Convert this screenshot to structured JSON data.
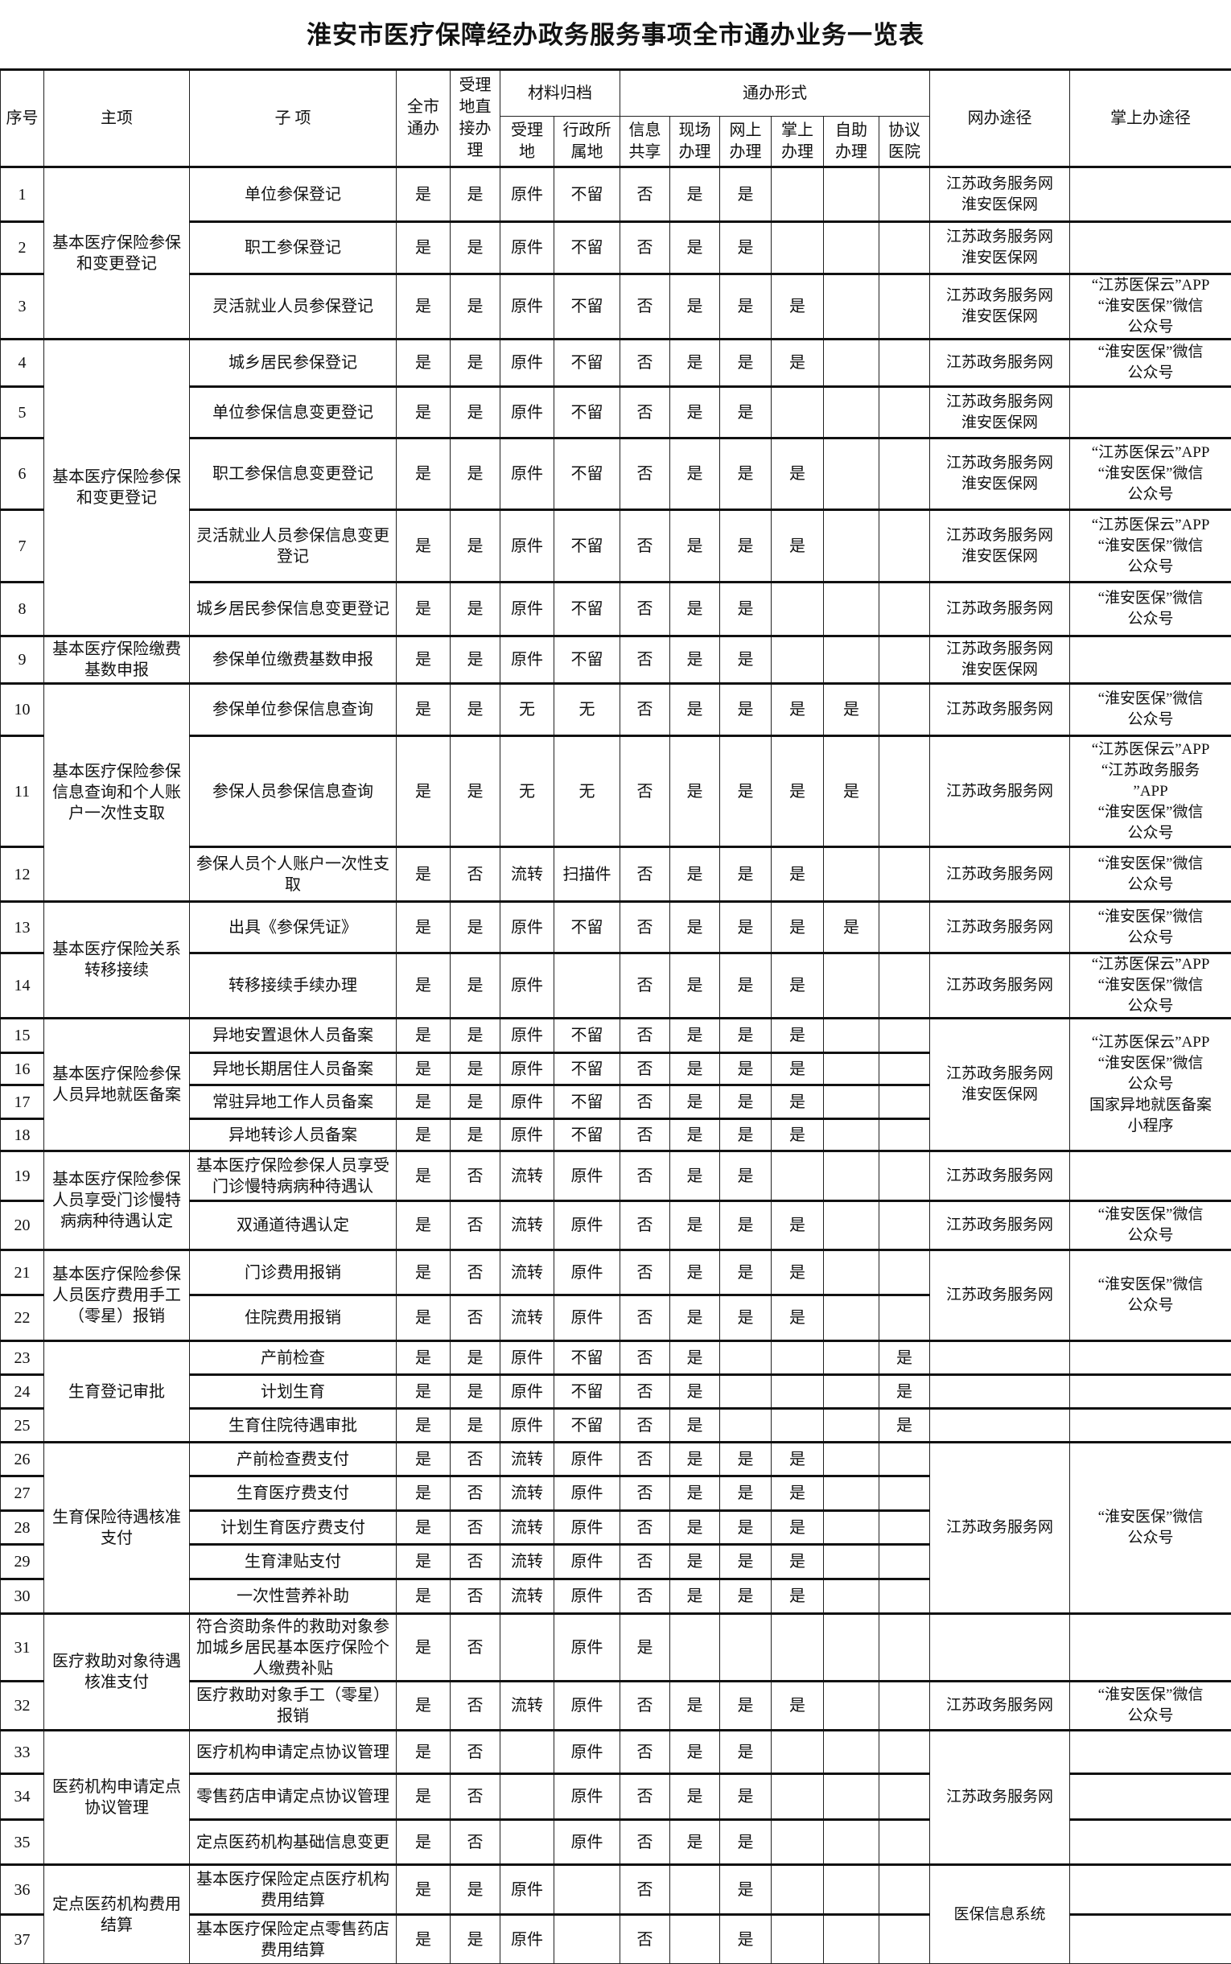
{
  "title": "淮安市医疗保障经办政务服务事项全市通办业务一览表",
  "headers": {
    "no": "序号",
    "main": "主项",
    "sub": "子 项",
    "citywide": "全市\n通办",
    "direct": "受理\n地直\n接办\n理",
    "archive": "材料归档",
    "archive_accept": "受理\n地",
    "archive_admin": "行政所\n属地",
    "mode": "通办形式",
    "mode_share": "信息\n共享",
    "mode_onsite": "现场\n办理",
    "mode_online": "网上\n办理",
    "mode_mobile": "掌上\n办理",
    "mode_self": "自助\n办理",
    "mode_hospital": "协议\n医院",
    "web": "网办途径",
    "mobile": "掌上办途径"
  },
  "rows": [
    {
      "no": "1",
      "sub": "单位参保登记",
      "c": [
        "是",
        "是",
        "原件",
        "不留",
        "否",
        "是",
        "是",
        "",
        "",
        ""
      ]
    },
    {
      "no": "2",
      "sub": "职工参保登记",
      "c": [
        "是",
        "是",
        "原件",
        "不留",
        "否",
        "是",
        "是",
        "",
        "",
        ""
      ]
    },
    {
      "no": "3",
      "sub": "灵活就业人员参保登记",
      "c": [
        "是",
        "是",
        "原件",
        "不留",
        "否",
        "是",
        "是",
        "是",
        "",
        ""
      ]
    },
    {
      "no": "4",
      "sub": "城乡居民参保登记",
      "c": [
        "是",
        "是",
        "原件",
        "不留",
        "否",
        "是",
        "是",
        "是",
        "",
        ""
      ]
    },
    {
      "no": "5",
      "sub": "单位参保信息变更登记",
      "c": [
        "是",
        "是",
        "原件",
        "不留",
        "否",
        "是",
        "是",
        "",
        "",
        ""
      ]
    },
    {
      "no": "6",
      "sub": "职工参保信息变更登记",
      "c": [
        "是",
        "是",
        "原件",
        "不留",
        "否",
        "是",
        "是",
        "是",
        "",
        ""
      ]
    },
    {
      "no": "7",
      "sub": "灵活就业人员参保信息变更登记",
      "c": [
        "是",
        "是",
        "原件",
        "不留",
        "否",
        "是",
        "是",
        "是",
        "",
        ""
      ]
    },
    {
      "no": "8",
      "sub": "城乡居民参保信息变更登记",
      "c": [
        "是",
        "是",
        "原件",
        "不留",
        "否",
        "是",
        "是",
        "",
        "",
        ""
      ]
    },
    {
      "no": "9",
      "sub": "参保单位缴费基数申报",
      "c": [
        "是",
        "是",
        "原件",
        "不留",
        "否",
        "是",
        "是",
        "",
        "",
        ""
      ]
    },
    {
      "no": "10",
      "sub": "参保单位参保信息查询",
      "c": [
        "是",
        "是",
        "无",
        "无",
        "否",
        "是",
        "是",
        "是",
        "是",
        ""
      ]
    },
    {
      "no": "11",
      "sub": "参保人员参保信息查询",
      "c": [
        "是",
        "是",
        "无",
        "无",
        "否",
        "是",
        "是",
        "是",
        "是",
        ""
      ]
    },
    {
      "no": "12",
      "sub": "参保人员个人账户一次性支取",
      "c": [
        "是",
        "否",
        "流转",
        "扫描件",
        "否",
        "是",
        "是",
        "是",
        "",
        ""
      ]
    },
    {
      "no": "13",
      "sub": "出具《参保凭证》",
      "c": [
        "是",
        "是",
        "原件",
        "不留",
        "否",
        "是",
        "是",
        "是",
        "是",
        ""
      ]
    },
    {
      "no": "14",
      "sub": "转移接续手续办理",
      "c": [
        "是",
        "是",
        "原件",
        "",
        "否",
        "是",
        "是",
        "是",
        "",
        ""
      ]
    },
    {
      "no": "15",
      "sub": "异地安置退休人员备案",
      "c": [
        "是",
        "是",
        "原件",
        "不留",
        "否",
        "是",
        "是",
        "是",
        "",
        ""
      ]
    },
    {
      "no": "16",
      "sub": "异地长期居住人员备案",
      "c": [
        "是",
        "是",
        "原件",
        "不留",
        "否",
        "是",
        "是",
        "是",
        "",
        ""
      ]
    },
    {
      "no": "17",
      "sub": "常驻异地工作人员备案",
      "c": [
        "是",
        "是",
        "原件",
        "不留",
        "否",
        "是",
        "是",
        "是",
        "",
        ""
      ]
    },
    {
      "no": "18",
      "sub": "异地转诊人员备案",
      "c": [
        "是",
        "是",
        "原件",
        "不留",
        "否",
        "是",
        "是",
        "是",
        "",
        ""
      ]
    },
    {
      "no": "19",
      "sub": "基本医疗保险参保人员享受门诊慢特病病种待遇认",
      "c": [
        "是",
        "否",
        "流转",
        "原件",
        "否",
        "是",
        "是",
        "",
        "",
        ""
      ]
    },
    {
      "no": "20",
      "sub": "双通道待遇认定",
      "c": [
        "是",
        "否",
        "流转",
        "原件",
        "否",
        "是",
        "是",
        "是",
        "",
        ""
      ]
    },
    {
      "no": "21",
      "sub": "门诊费用报销",
      "c": [
        "是",
        "否",
        "流转",
        "原件",
        "否",
        "是",
        "是",
        "是",
        "",
        ""
      ]
    },
    {
      "no": "22",
      "sub": "住院费用报销",
      "c": [
        "是",
        "否",
        "流转",
        "原件",
        "否",
        "是",
        "是",
        "是",
        "",
        ""
      ]
    },
    {
      "no": "23",
      "sub": "产前检查",
      "c": [
        "是",
        "是",
        "原件",
        "不留",
        "否",
        "是",
        "",
        "",
        "",
        "是"
      ]
    },
    {
      "no": "24",
      "sub": "计划生育",
      "c": [
        "是",
        "是",
        "原件",
        "不留",
        "否",
        "是",
        "",
        "",
        "",
        "是"
      ]
    },
    {
      "no": "25",
      "sub": "生育住院待遇审批",
      "c": [
        "是",
        "是",
        "原件",
        "不留",
        "否",
        "是",
        "",
        "",
        "",
        "是"
      ]
    },
    {
      "no": "26",
      "sub": "产前检查费支付",
      "c": [
        "是",
        "否",
        "流转",
        "原件",
        "否",
        "是",
        "是",
        "是",
        "",
        ""
      ]
    },
    {
      "no": "27",
      "sub": "生育医疗费支付",
      "c": [
        "是",
        "否",
        "流转",
        "原件",
        "否",
        "是",
        "是",
        "是",
        "",
        ""
      ]
    },
    {
      "no": "28",
      "sub": "计划生育医疗费支付",
      "c": [
        "是",
        "否",
        "流转",
        "原件",
        "否",
        "是",
        "是",
        "是",
        "",
        ""
      ]
    },
    {
      "no": "29",
      "sub": "生育津贴支付",
      "c": [
        "是",
        "否",
        "流转",
        "原件",
        "否",
        "是",
        "是",
        "是",
        "",
        ""
      ]
    },
    {
      "no": "30",
      "sub": "一次性营养补助",
      "c": [
        "是",
        "否",
        "流转",
        "原件",
        "否",
        "是",
        "是",
        "是",
        "",
        ""
      ]
    },
    {
      "no": "31",
      "sub": "符合资助条件的救助对象参加城乡居民基本医疗保险个人缴费补贴",
      "c": [
        "是",
        "否",
        "",
        "原件",
        "是",
        "",
        "",
        "",
        "",
        ""
      ]
    },
    {
      "no": "32",
      "sub": "医疗救助对象手工（零星）报销",
      "c": [
        "是",
        "否",
        "流转",
        "原件",
        "否",
        "是",
        "是",
        "是",
        "",
        ""
      ]
    },
    {
      "no": "33",
      "sub": "医疗机构申请定点协议管理",
      "c": [
        "是",
        "否",
        "",
        "原件",
        "否",
        "是",
        "是",
        "",
        "",
        ""
      ]
    },
    {
      "no": "34",
      "sub": "零售药店申请定点协议管理",
      "c": [
        "是",
        "否",
        "",
        "原件",
        "否",
        "是",
        "是",
        "",
        "",
        ""
      ]
    },
    {
      "no": "35",
      "sub": "定点医药机构基础信息变更",
      "c": [
        "是",
        "否",
        "",
        "原件",
        "否",
        "是",
        "是",
        "",
        "",
        ""
      ]
    },
    {
      "no": "36",
      "sub": "基本医疗保险定点医疗机构费用结算",
      "c": [
        "是",
        "是",
        "原件",
        "",
        "否",
        "",
        "是",
        "",
        "",
        ""
      ]
    },
    {
      "no": "37",
      "sub": "基本医疗保险定点零售药店费用结算",
      "c": [
        "是",
        "是",
        "原件",
        "",
        "否",
        "",
        "是",
        "",
        "",
        ""
      ]
    }
  ],
  "main_groups": [
    {
      "label": "基本医疗保险参保和变更登记",
      "span": 3
    },
    {
      "label": "基本医疗保险参保和变更登记",
      "span": 5
    },
    {
      "label": "基本医疗保险缴费基数申报",
      "span": 1
    },
    {
      "label": "基本医疗保险参保信息查询和个人账户一次性支取",
      "span": 3
    },
    {
      "label": "基本医疗保险关系转移接续",
      "span": 2
    },
    {
      "label": "基本医疗保险参保人员异地就医备案",
      "span": 4
    },
    {
      "label": "基本医疗保险参保人员享受门诊慢特病病种待遇认定",
      "span": 2
    },
    {
      "label": "基本医疗保险参保人员医疗费用手工（零星）报销",
      "span": 2
    },
    {
      "label": "生育登记审批",
      "span": 3
    },
    {
      "label": "生育保险待遇核准支付",
      "span": 5
    },
    {
      "label": "医疗救助对象待遇核准支付",
      "span": 2
    },
    {
      "label": "医药机构申请定点协议管理",
      "span": 3
    },
    {
      "label": "定点医药机构费用结算",
      "span": 2
    }
  ],
  "web_groups": [
    {
      "label": "江苏政务服务网\n淮安医保网",
      "span": 1
    },
    {
      "label": "江苏政务服务网\n淮安医保网",
      "span": 1
    },
    {
      "label": "江苏政务服务网\n淮安医保网",
      "span": 1
    },
    {
      "label": "江苏政务服务网",
      "span": 1
    },
    {
      "label": "江苏政务服务网\n淮安医保网",
      "span": 1
    },
    {
      "label": "江苏政务服务网\n淮安医保网",
      "span": 1
    },
    {
      "label": "江苏政务服务网\n淮安医保网",
      "span": 1
    },
    {
      "label": "江苏政务服务网",
      "span": 1
    },
    {
      "label": "江苏政务服务网\n淮安医保网",
      "span": 1
    },
    {
      "label": "江苏政务服务网",
      "span": 1
    },
    {
      "label": "江苏政务服务网",
      "span": 1
    },
    {
      "label": "江苏政务服务网",
      "span": 1
    },
    {
      "label": "江苏政务服务网",
      "span": 1
    },
    {
      "label": "江苏政务服务网",
      "span": 1
    },
    {
      "label": "江苏政务服务网\n淮安医保网",
      "span": 4
    },
    {
      "label": "江苏政务服务网",
      "span": 1
    },
    {
      "label": "江苏政务服务网",
      "span": 1
    },
    {
      "label": "江苏政务服务网",
      "span": 2
    },
    {
      "label": "",
      "span": 1
    },
    {
      "label": "",
      "span": 1
    },
    {
      "label": "",
      "span": 1
    },
    {
      "label": "江苏政务服务网",
      "span": 5
    },
    {
      "label": "",
      "span": 1
    },
    {
      "label": "江苏政务服务网",
      "span": 1
    },
    {
      "label": "江苏政务服务网",
      "span": 3
    },
    {
      "label": "医保信息系统",
      "span": 2
    }
  ],
  "mobile_groups": [
    {
      "label": "",
      "span": 1
    },
    {
      "label": "",
      "span": 1
    },
    {
      "label": "“江苏医保云”APP\n“淮安医保”微信\n公众号",
      "span": 1
    },
    {
      "label": "“淮安医保”微信\n公众号",
      "span": 1
    },
    {
      "label": "",
      "span": 1
    },
    {
      "label": "“江苏医保云”APP\n“淮安医保”微信\n公众号",
      "span": 1
    },
    {
      "label": "“江苏医保云”APP\n“淮安医保”微信\n公众号",
      "span": 1
    },
    {
      "label": "“淮安医保”微信\n公众号",
      "span": 1
    },
    {
      "label": "",
      "span": 1
    },
    {
      "label": "“淮安医保”微信\n公众号",
      "span": 1
    },
    {
      "label": "“江苏医保云”APP\n“江苏政务服务\n”APP\n“淮安医保”微信\n公众号",
      "span": 1
    },
    {
      "label": "“淮安医保”微信\n公众号",
      "span": 1
    },
    {
      "label": "“淮安医保”微信\n公众号",
      "span": 1
    },
    {
      "label": "“江苏医保云”APP\n“淮安医保”微信\n公众号",
      "span": 1
    },
    {
      "label": "“江苏医保云”APP\n“淮安医保”微信\n公众号\n国家异地就医备案\n小程序",
      "span": 4
    },
    {
      "label": "",
      "span": 1
    },
    {
      "label": "“淮安医保”微信\n公众号",
      "span": 1
    },
    {
      "label": "“淮安医保”微信\n公众号",
      "span": 2
    },
    {
      "label": "",
      "span": 1
    },
    {
      "label": "",
      "span": 1
    },
    {
      "label": "",
      "span": 1
    },
    {
      "label": "“淮安医保”微信\n公众号",
      "span": 5
    },
    {
      "label": "",
      "span": 1
    },
    {
      "label": "“淮安医保”微信\n公众号",
      "span": 1
    },
    {
      "label": "",
      "span": 1
    },
    {
      "label": "",
      "span": 1
    },
    {
      "label": "",
      "span": 1
    },
    {
      "label": "",
      "span": 1
    },
    {
      "label": "",
      "span": 1
    }
  ]
}
